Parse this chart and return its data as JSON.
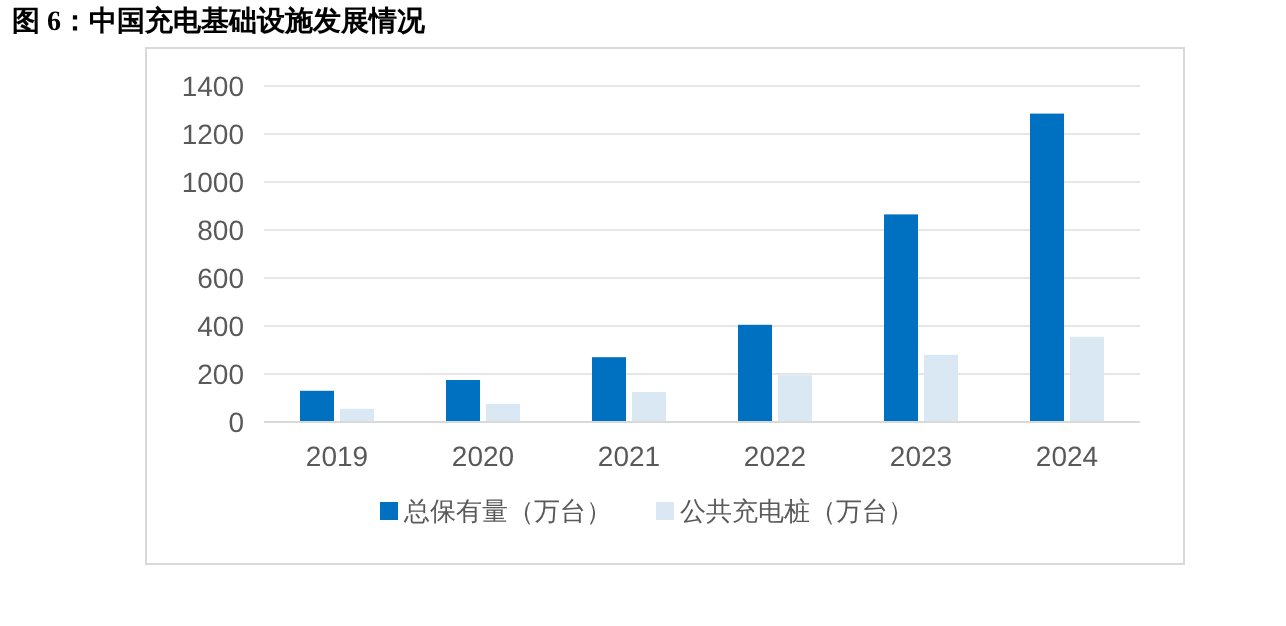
{
  "chart_data": {
    "type": "bar",
    "title": "图 6：中国充电基础设施发展情况",
    "categories": [
      "2019",
      "2020",
      "2021",
      "2022",
      "2023",
      "2024"
    ],
    "series": [
      {
        "name": "总保有量（万台）",
        "color": "#0070c0",
        "values": [
          130,
          175,
          270,
          405,
          865,
          1285
        ]
      },
      {
        "name": "公共充电桩（万台）",
        "color": "#d9e8f3",
        "values": [
          55,
          75,
          125,
          195,
          280,
          355
        ]
      }
    ],
    "ylim": [
      0,
      1400
    ],
    "yticks": [
      0,
      200,
      400,
      600,
      800,
      1000,
      1200,
      1400
    ],
    "grid": "y",
    "legend": "bottom"
  }
}
